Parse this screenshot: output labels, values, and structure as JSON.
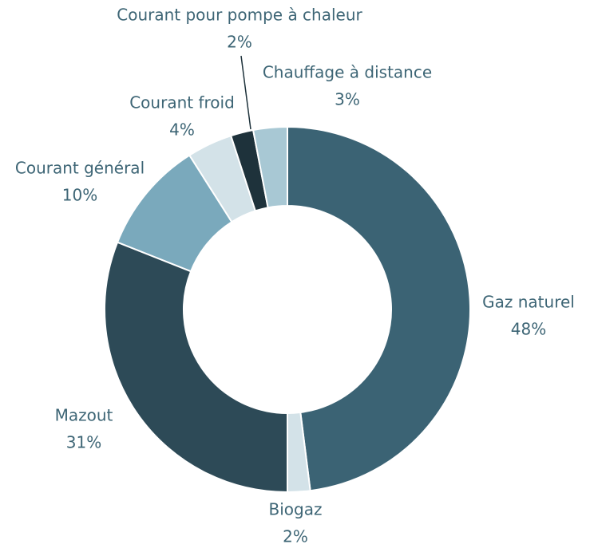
{
  "chart_data": {
    "type": "donut",
    "categories": [
      "Gaz naturel",
      "Biogaz",
      "Mazout",
      "Courant général",
      "Courant froid",
      "Courant pour pompe à chaleur",
      "Chauffage à distance"
    ],
    "values": [
      48,
      2,
      31,
      10,
      4,
      2,
      3
    ],
    "value_labels": [
      "48%",
      "2%",
      "31%",
      "10%",
      "4%",
      "2%",
      "3%"
    ],
    "colors": [
      "#3b6374",
      "#d3e2e8",
      "#2d4a57",
      "#7aa9bc",
      "#d3e2e8",
      "#1e323b",
      "#a8c8d4"
    ]
  }
}
